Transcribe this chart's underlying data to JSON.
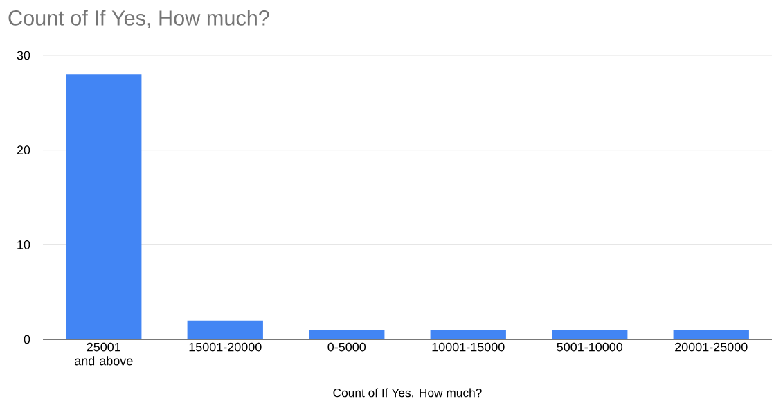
{
  "chart_data": {
    "type": "bar",
    "title": "Count of If Yes, How much?",
    "xlabel": "Count of If Yes. How much?",
    "categories": [
      "25001 and above",
      "15001-20000",
      "0-5000",
      "10001-15000",
      "5001-10000",
      "20001-25000"
    ],
    "values": [
      28,
      2,
      1,
      1,
      1,
      1
    ],
    "color": "#4285f4",
    "ylim": [
      0,
      30
    ],
    "yticks": [
      0,
      10,
      20,
      30
    ],
    "grid": "y"
  }
}
